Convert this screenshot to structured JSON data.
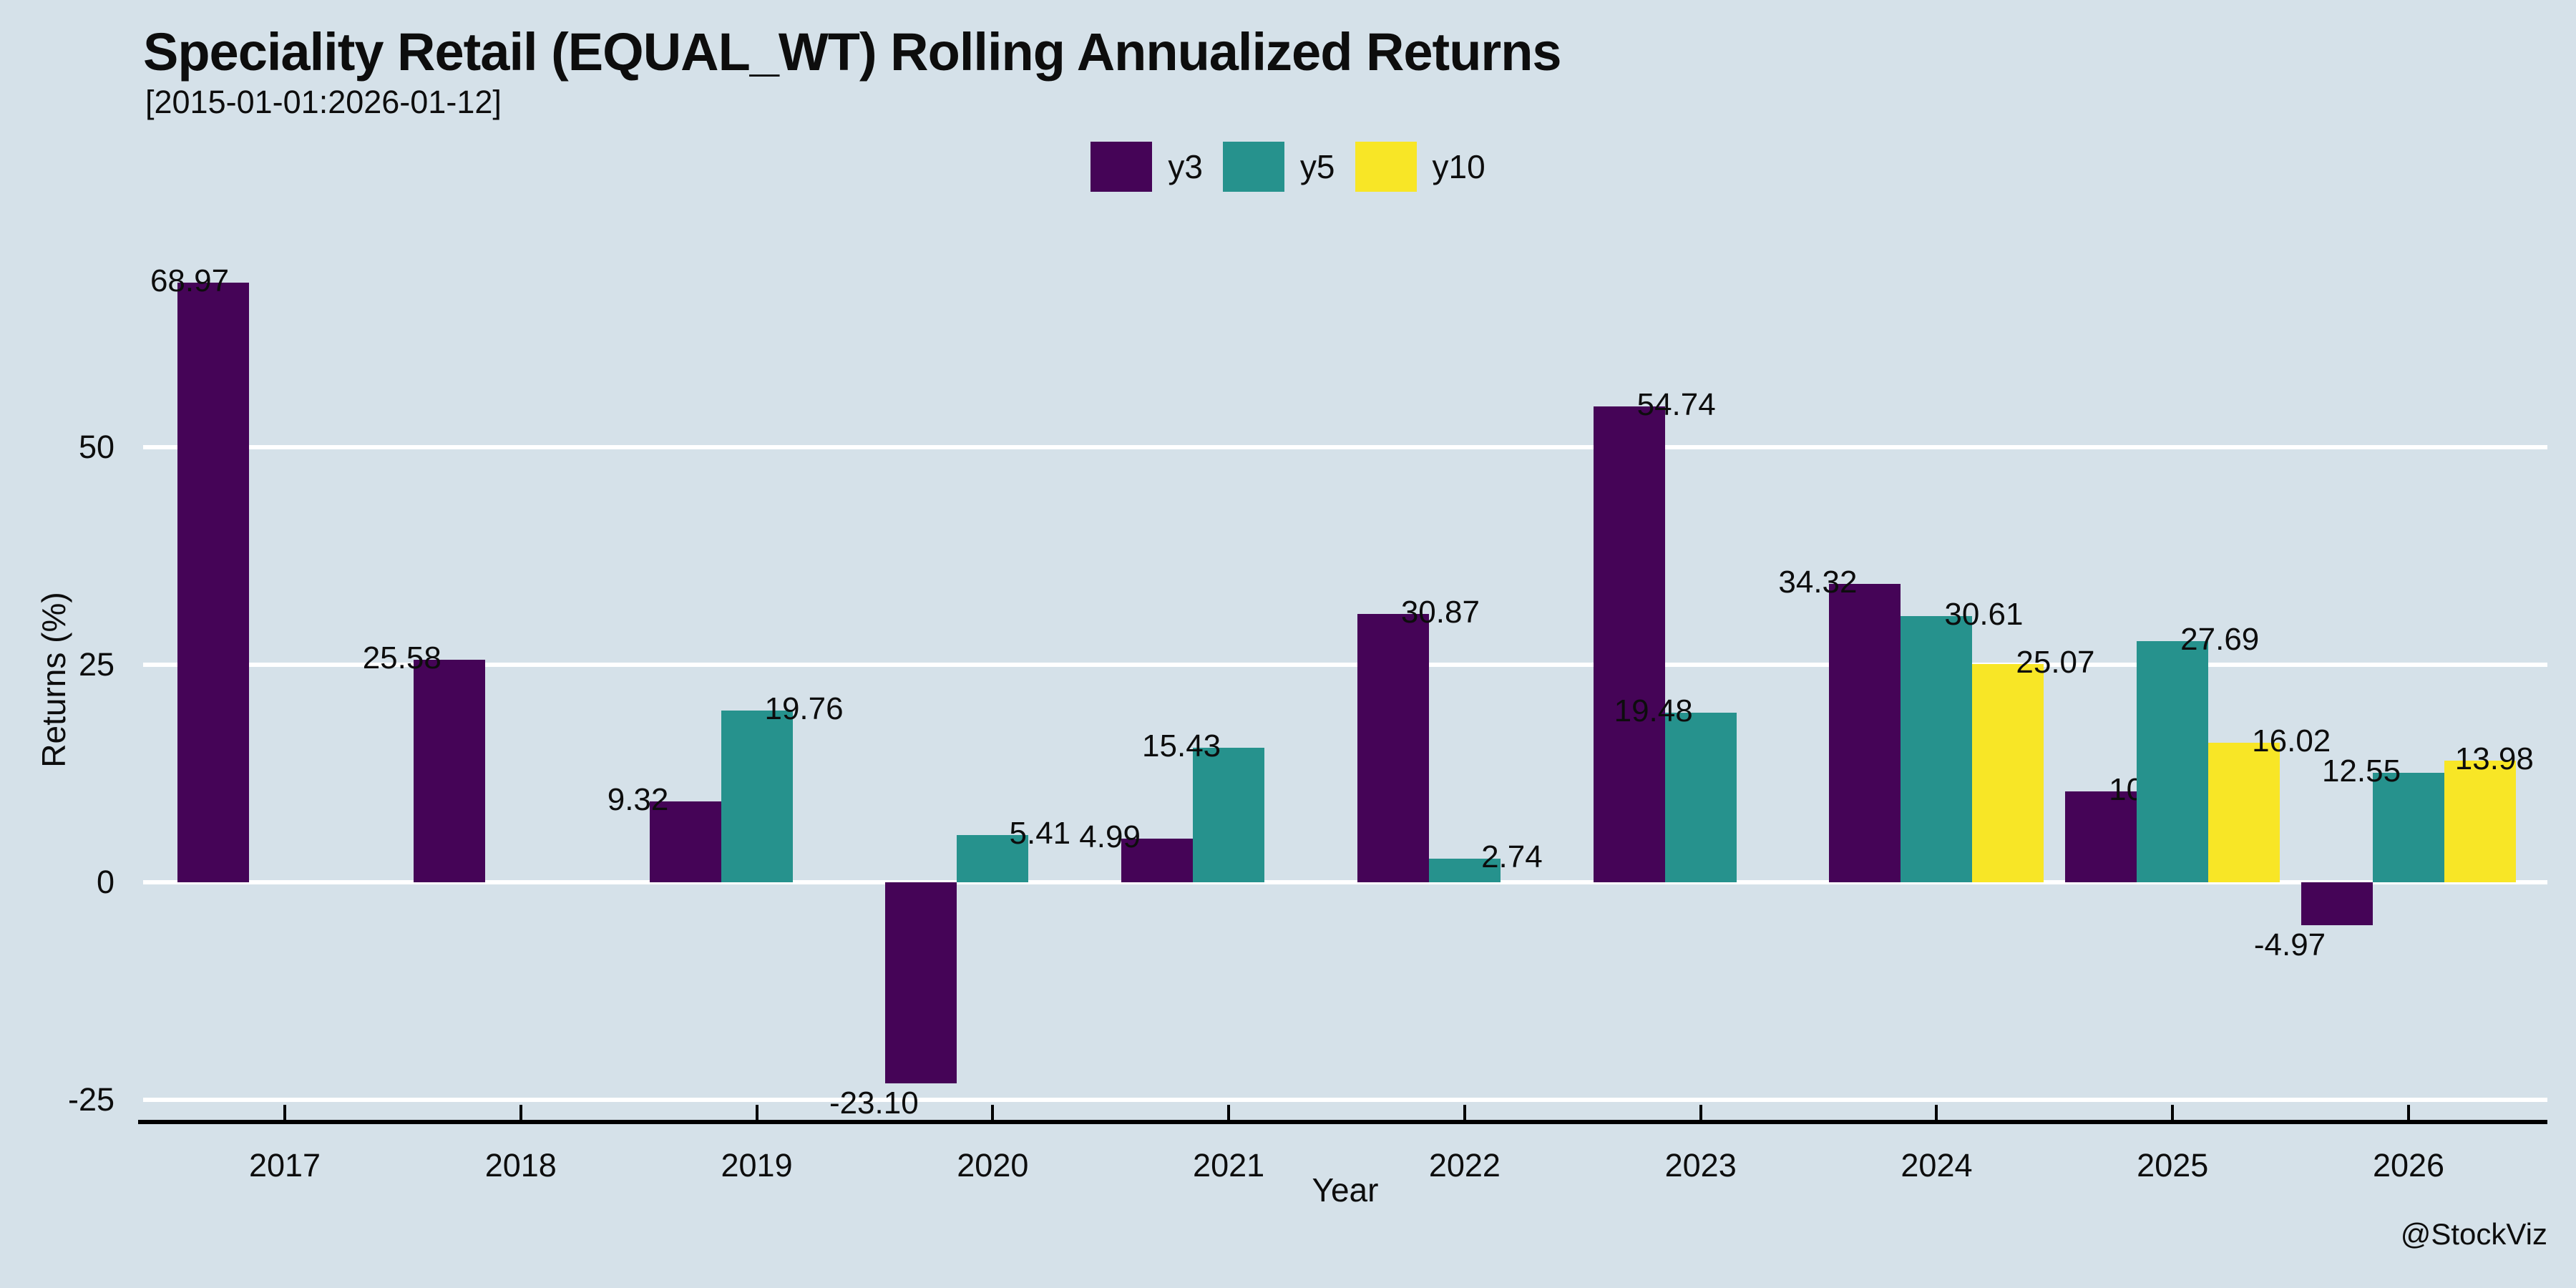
{
  "title": "Speciality Retail (EQUAL_WT) Rolling Annualized Returns",
  "subtitle": "[2015-01-01:2026-01-12]",
  "watermark": "@StockViz",
  "colors": {
    "background": "#d5e1e9",
    "gridline": "#ffffff",
    "axis": "#000000",
    "text": "#0d0d0d"
  },
  "chart_data": {
    "type": "bar",
    "title": "Speciality Retail (EQUAL_WT) Rolling Annualized Returns",
    "subtitle": "[2015-01-01:2026-01-12]",
    "xlabel": "Year",
    "ylabel": "Returns (%)",
    "categories": [
      "2017",
      "2018",
      "2019",
      "2020",
      "2021",
      "2022",
      "2023",
      "2024",
      "2025",
      "2026"
    ],
    "series": [
      {
        "name": "y3",
        "color": "#450457",
        "values": [
          68.97,
          25.58,
          9.32,
          -23.1,
          4.99,
          30.87,
          54.74,
          34.32,
          10.48,
          -4.97
        ],
        "label_sides": [
          -0.5,
          -1,
          -1,
          -1,
          -1,
          1,
          1,
          -1,
          1,
          -1
        ]
      },
      {
        "name": "y5",
        "color": "#26928d",
        "values": [
          null,
          null,
          19.76,
          5.41,
          15.43,
          2.74,
          19.48,
          30.61,
          27.69,
          12.55
        ],
        "label_sides": [
          0,
          0,
          1,
          1,
          -1,
          1,
          -1,
          1,
          1,
          -1
        ]
      },
      {
        "name": "y10",
        "color": "#f8e626",
        "values": [
          null,
          null,
          null,
          null,
          null,
          null,
          null,
          25.07,
          16.02,
          13.98
        ],
        "label_sides": [
          0,
          0,
          0,
          0,
          0,
          0,
          0,
          1,
          1,
          0.3
        ]
      }
    ],
    "yticks": [
      -25,
      0,
      25,
      50
    ],
    "ylim": [
      -27.6,
      74.3
    ],
    "grid": true,
    "gridline_color": "#ffffff",
    "legend_position": "top-center",
    "value_label_format": "2-decimals"
  }
}
